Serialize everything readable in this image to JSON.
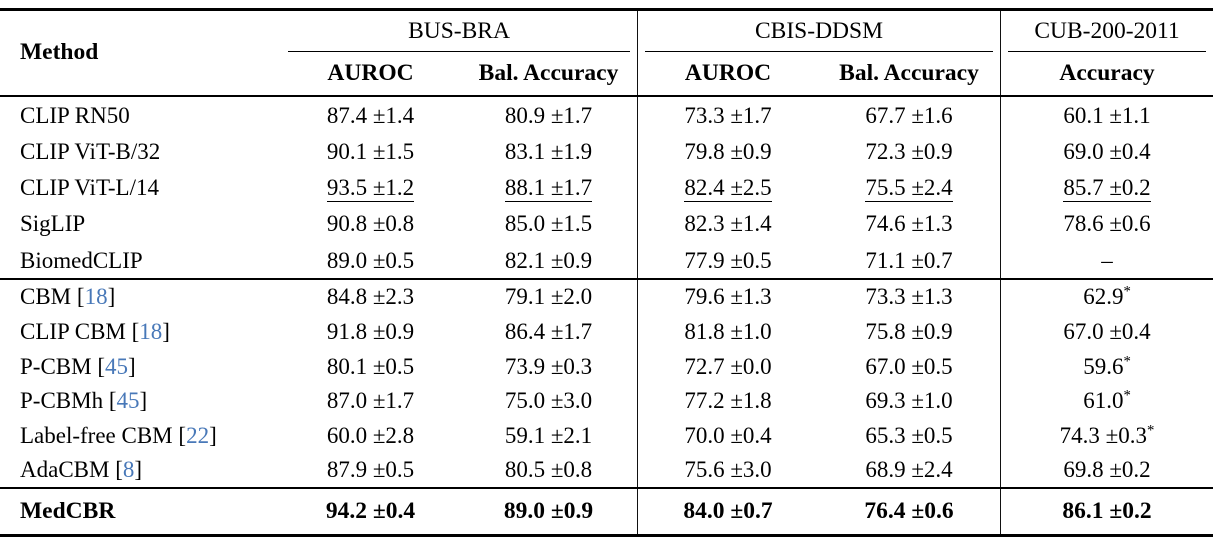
{
  "colors": {
    "citation_blue": "#4878b8",
    "text": "#000000",
    "background": "#ffffff"
  },
  "table": {
    "method_header": "Method",
    "groups": [
      {
        "label": "BUS-BRA",
        "columns": [
          "AUROC",
          "Bal. Accuracy"
        ]
      },
      {
        "label": "CBIS-DDSM",
        "columns": [
          "AUROC",
          "Bal. Accuracy"
        ]
      },
      {
        "label": "CUB-200-2011",
        "columns": [
          "Accuracy"
        ]
      }
    ],
    "sections": [
      {
        "rows": [
          {
            "method": {
              "name": "CLIP RN50"
            },
            "cells": [
              {
                "t": "87.4 ±1.4"
              },
              {
                "t": "80.9 ±1.7"
              },
              {
                "t": "73.3 ±1.7"
              },
              {
                "t": "67.7 ±1.6"
              },
              {
                "t": "60.1 ±1.1"
              }
            ]
          },
          {
            "method": {
              "name": "CLIP ViT-B/32"
            },
            "cells": [
              {
                "t": "90.1 ±1.5"
              },
              {
                "t": "83.1 ±1.9"
              },
              {
                "t": "79.8 ±0.9"
              },
              {
                "t": "72.3 ±0.9"
              },
              {
                "t": "69.0 ±0.4"
              }
            ]
          },
          {
            "method": {
              "name": "CLIP ViT-L/14"
            },
            "cells": [
              {
                "t": "93.5 ±1.2",
                "u": true
              },
              {
                "t": "88.1 ±1.7",
                "u": true
              },
              {
                "t": "82.4 ±2.5",
                "u": true
              },
              {
                "t": "75.5 ±2.4",
                "u": true
              },
              {
                "t": "85.7 ±0.2",
                "u": true
              }
            ]
          },
          {
            "method": {
              "name": "SigLIP"
            },
            "cells": [
              {
                "t": "90.8 ±0.8"
              },
              {
                "t": "85.0 ±1.5"
              },
              {
                "t": "82.3 ±1.4"
              },
              {
                "t": "74.6 ±1.3"
              },
              {
                "t": "78.6 ±0.6"
              }
            ]
          },
          {
            "method": {
              "name": "BiomedCLIP"
            },
            "cells": [
              {
                "t": "89.0 ±0.5"
              },
              {
                "t": "82.1 ±0.9"
              },
              {
                "t": "77.9 ±0.5"
              },
              {
                "t": "71.1 ±0.7"
              },
              {
                "t": "–"
              }
            ]
          }
        ]
      },
      {
        "rows": [
          {
            "method": {
              "name": "CBM",
              "cite": "18"
            },
            "cells": [
              {
                "t": "84.8 ±2.3"
              },
              {
                "t": "79.1 ±2.0"
              },
              {
                "t": "79.6 ±1.3"
              },
              {
                "t": "73.3 ±1.3"
              },
              {
                "t": "62.9",
                "sup": "*"
              }
            ]
          },
          {
            "method": {
              "name": "CLIP CBM",
              "cite": "18"
            },
            "cells": [
              {
                "t": "91.8 ±0.9"
              },
              {
                "t": "86.4 ±1.7"
              },
              {
                "t": "81.8 ±1.0"
              },
              {
                "t": "75.8 ±0.9"
              },
              {
                "t": "67.0 ±0.4"
              }
            ]
          },
          {
            "method": {
              "name": "P-CBM",
              "cite": "45"
            },
            "cells": [
              {
                "t": "80.1 ±0.5"
              },
              {
                "t": "73.9 ±0.3"
              },
              {
                "t": "72.7 ±0.0"
              },
              {
                "t": "67.0 ±0.5"
              },
              {
                "t": "59.6",
                "sup": "*"
              }
            ]
          },
          {
            "method": {
              "name": "P-CBMh",
              "cite": "45"
            },
            "cells": [
              {
                "t": "87.0 ±1.7"
              },
              {
                "t": "75.0 ±3.0"
              },
              {
                "t": "77.2 ±1.8"
              },
              {
                "t": "69.3 ±1.0"
              },
              {
                "t": "61.0",
                "sup": "*"
              }
            ]
          },
          {
            "method": {
              "name": "Label-free CBM",
              "cite": "22"
            },
            "cells": [
              {
                "t": "60.0 ±2.8"
              },
              {
                "t": "59.1 ±2.1"
              },
              {
                "t": "70.0 ±0.4"
              },
              {
                "t": "65.3 ±0.5"
              },
              {
                "t": "74.3 ±0.3",
                "sup": "*"
              }
            ]
          },
          {
            "method": {
              "name": "AdaCBM",
              "cite": "8"
            },
            "cells": [
              {
                "t": "87.9 ±0.5"
              },
              {
                "t": "80.5 ±0.8"
              },
              {
                "t": "75.6 ±3.0"
              },
              {
                "t": "68.9 ±2.4"
              },
              {
                "t": "69.8 ±0.2"
              }
            ]
          }
        ]
      },
      {
        "rows": [
          {
            "method": {
              "name": "MedCBR"
            },
            "bold": true,
            "cells": [
              {
                "t": "94.2 ±0.4"
              },
              {
                "t": "89.0 ±0.9"
              },
              {
                "t": "84.0 ±0.7"
              },
              {
                "t": "76.4 ±0.6"
              },
              {
                "t": "86.1 ±0.2"
              }
            ]
          }
        ]
      }
    ]
  }
}
